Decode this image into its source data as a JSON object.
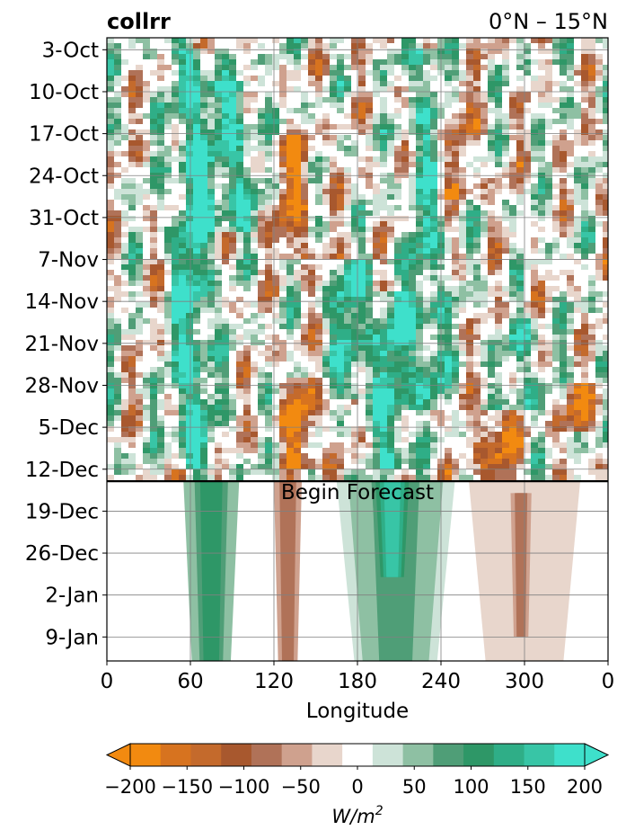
{
  "chart_data": {
    "type": "heatmap",
    "title": "collrr",
    "region": "0°N – 15°N",
    "xlabel": "Longitude",
    "x_ticks": [
      "0",
      "60",
      "120",
      "180",
      "240",
      "300",
      "0"
    ],
    "x_tick_values": [
      0,
      60,
      120,
      180,
      240,
      300,
      360
    ],
    "xlim": [
      0,
      360
    ],
    "y_ticks": [
      "3-Oct",
      "10-Oct",
      "17-Oct",
      "24-Oct",
      "31-Oct",
      "7-Nov",
      "14-Nov",
      "21-Nov",
      "28-Nov",
      "5-Dec",
      "12-Dec",
      "19-Dec",
      "26-Dec",
      "2-Jan",
      "9-Jan"
    ],
    "y_tick_days": [
      0,
      7,
      14,
      21,
      28,
      35,
      42,
      49,
      56,
      63,
      70,
      77,
      84,
      91,
      98
    ],
    "ylim_days": [
      -2,
      102
    ],
    "grid": true,
    "forecast_line_day": 72,
    "annotation": "Begin Forecast",
    "colorbar": {
      "levels": [
        -200,
        -175,
        -150,
        -125,
        -100,
        -75,
        -50,
        -25,
        25,
        50,
        75,
        100,
        125,
        150,
        175,
        200
      ],
      "colors": [
        "#f28a10",
        "#d7731f",
        "#c46a2c",
        "#a8582e",
        "#b07258",
        "#cfa18e",
        "#e8d6cc",
        "#ffffff",
        "#cde3d8",
        "#8ec0a3",
        "#4f9e77",
        "#2e9767",
        "#2fae87",
        "#38c5a6",
        "#3ee0cb"
      ],
      "ticks": [
        "−200",
        "−150",
        "−100",
        "−50",
        "0",
        "50",
        "100",
        "150",
        "200"
      ],
      "tick_values": [
        -200,
        -150,
        -100,
        -50,
        0,
        50,
        100,
        150,
        200
      ],
      "extend": "both",
      "label": "W/m²"
    },
    "features_observed": [
      {
        "lon": 62,
        "day_start": 0,
        "day_end": 70,
        "value": 175
      },
      {
        "lon": 92,
        "day_start": 5,
        "day_end": 30,
        "value": 150
      },
      {
        "lon": 135,
        "day_start": 14,
        "day_end": 35,
        "value": -125
      },
      {
        "lon": 140,
        "day_start": 55,
        "day_end": 70,
        "value": -150
      },
      {
        "lon": 175,
        "day_start": 35,
        "day_end": 58,
        "value": 150
      },
      {
        "lon": 205,
        "day_start": 40,
        "day_end": 70,
        "value": 150
      },
      {
        "lon": 230,
        "day_start": 0,
        "day_end": 60,
        "value": 125
      },
      {
        "lon": 250,
        "day_start": 5,
        "day_end": 25,
        "value": -100
      },
      {
        "lon": 280,
        "day_start": 60,
        "day_end": 72,
        "value": -150
      },
      {
        "lon": 300,
        "day_start": 45,
        "day_end": 60,
        "value": 100
      },
      {
        "lon": 340,
        "day_start": 56,
        "day_end": 64,
        "value": -125
      }
    ],
    "features_forecast": [
      {
        "lon_start": 55,
        "lon_end": 95,
        "day_start": 72,
        "day_end": 102,
        "value": 100
      },
      {
        "lon_start": 120,
        "lon_end": 140,
        "day_start": 72,
        "day_end": 102,
        "value": -100
      },
      {
        "lon_start": 165,
        "lon_end": 250,
        "day_start": 72,
        "day_end": 102,
        "value": 75
      },
      {
        "lon_start": 190,
        "lon_end": 220,
        "day_start": 72,
        "day_end": 88,
        "value": 150
      },
      {
        "lon_start": 260,
        "lon_end": 340,
        "day_start": 72,
        "day_end": 102,
        "value": -50
      },
      {
        "lon_start": 290,
        "lon_end": 305,
        "day_start": 74,
        "day_end": 98,
        "value": -100
      }
    ]
  }
}
